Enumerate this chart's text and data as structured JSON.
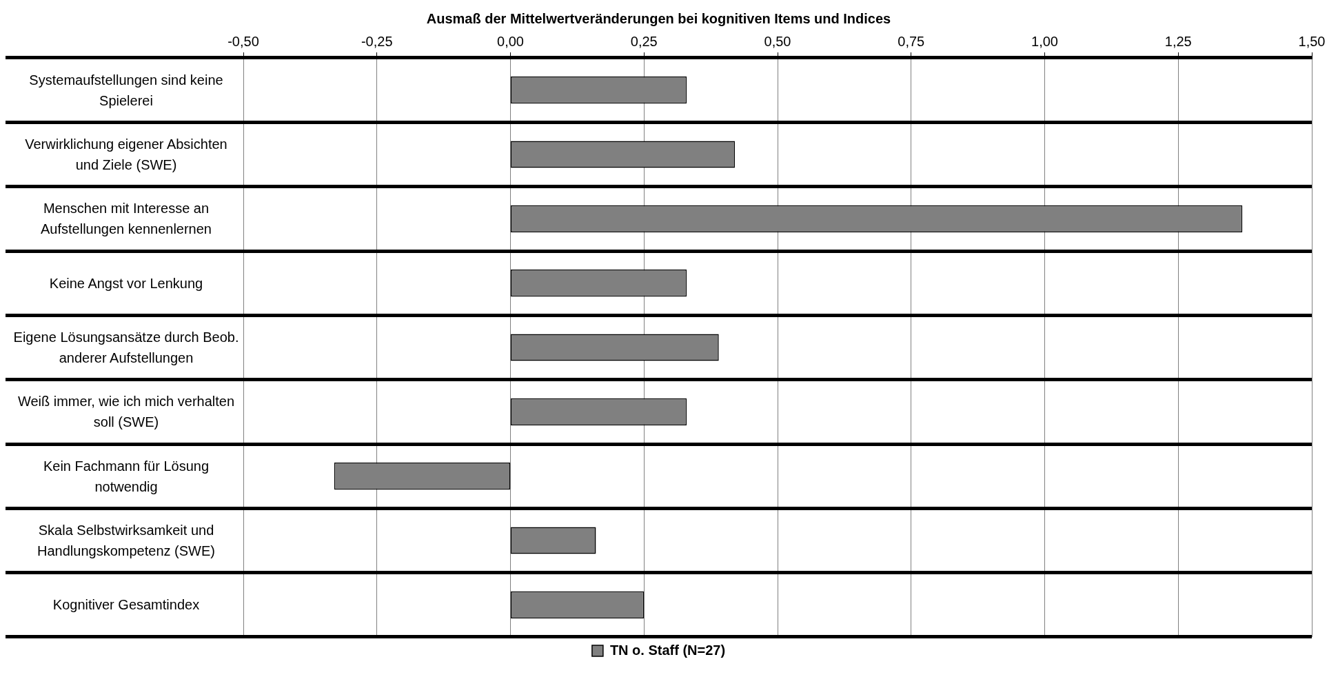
{
  "chart_data": {
    "type": "bar",
    "orientation": "horizontal",
    "title": "Ausmaß der Mittelwertveränderungen bei kognitiven Items und Indices",
    "categories": [
      "Systemaufstellungen sind keine Spielerei",
      "Verwirklichung eigener Absichten und Ziele (SWE)",
      "Menschen mit Interesse an Aufstellungen kennenlernen",
      "Keine Angst vor Lenkung",
      "Eigene Lösungsansätze durch Beob. anderer Aufstellungen",
      "Weiß immer, wie ich mich verhalten soll (SWE)",
      "Kein Fachmann für Lösung notwendig",
      "Skala Selbstwirksamkeit und Handlungskompetenz (SWE)",
      "Kognitiver Gesamtindex"
    ],
    "series": [
      {
        "name": "TN o. Staff (N=27)",
        "color": "#808080",
        "values": [
          0.33,
          0.42,
          1.37,
          0.33,
          0.39,
          0.33,
          -0.33,
          0.16,
          0.25
        ]
      }
    ],
    "xlim": [
      -0.5,
      1.5
    ],
    "xticks": [
      {
        "value": -0.5,
        "label": "-0,50"
      },
      {
        "value": -0.25,
        "label": "-0,25"
      },
      {
        "value": 0,
        "label": "0,00"
      },
      {
        "value": 0.25,
        "label": "0,25"
      },
      {
        "value": 0.5,
        "label": "0,50"
      },
      {
        "value": 0.75,
        "label": "0,75"
      },
      {
        "value": 1,
        "label": "1,00"
      },
      {
        "value": 1.25,
        "label": "1,25"
      },
      {
        "value": 1.5,
        "label": "1,50"
      }
    ],
    "grid": "x",
    "legend": "bottom"
  }
}
